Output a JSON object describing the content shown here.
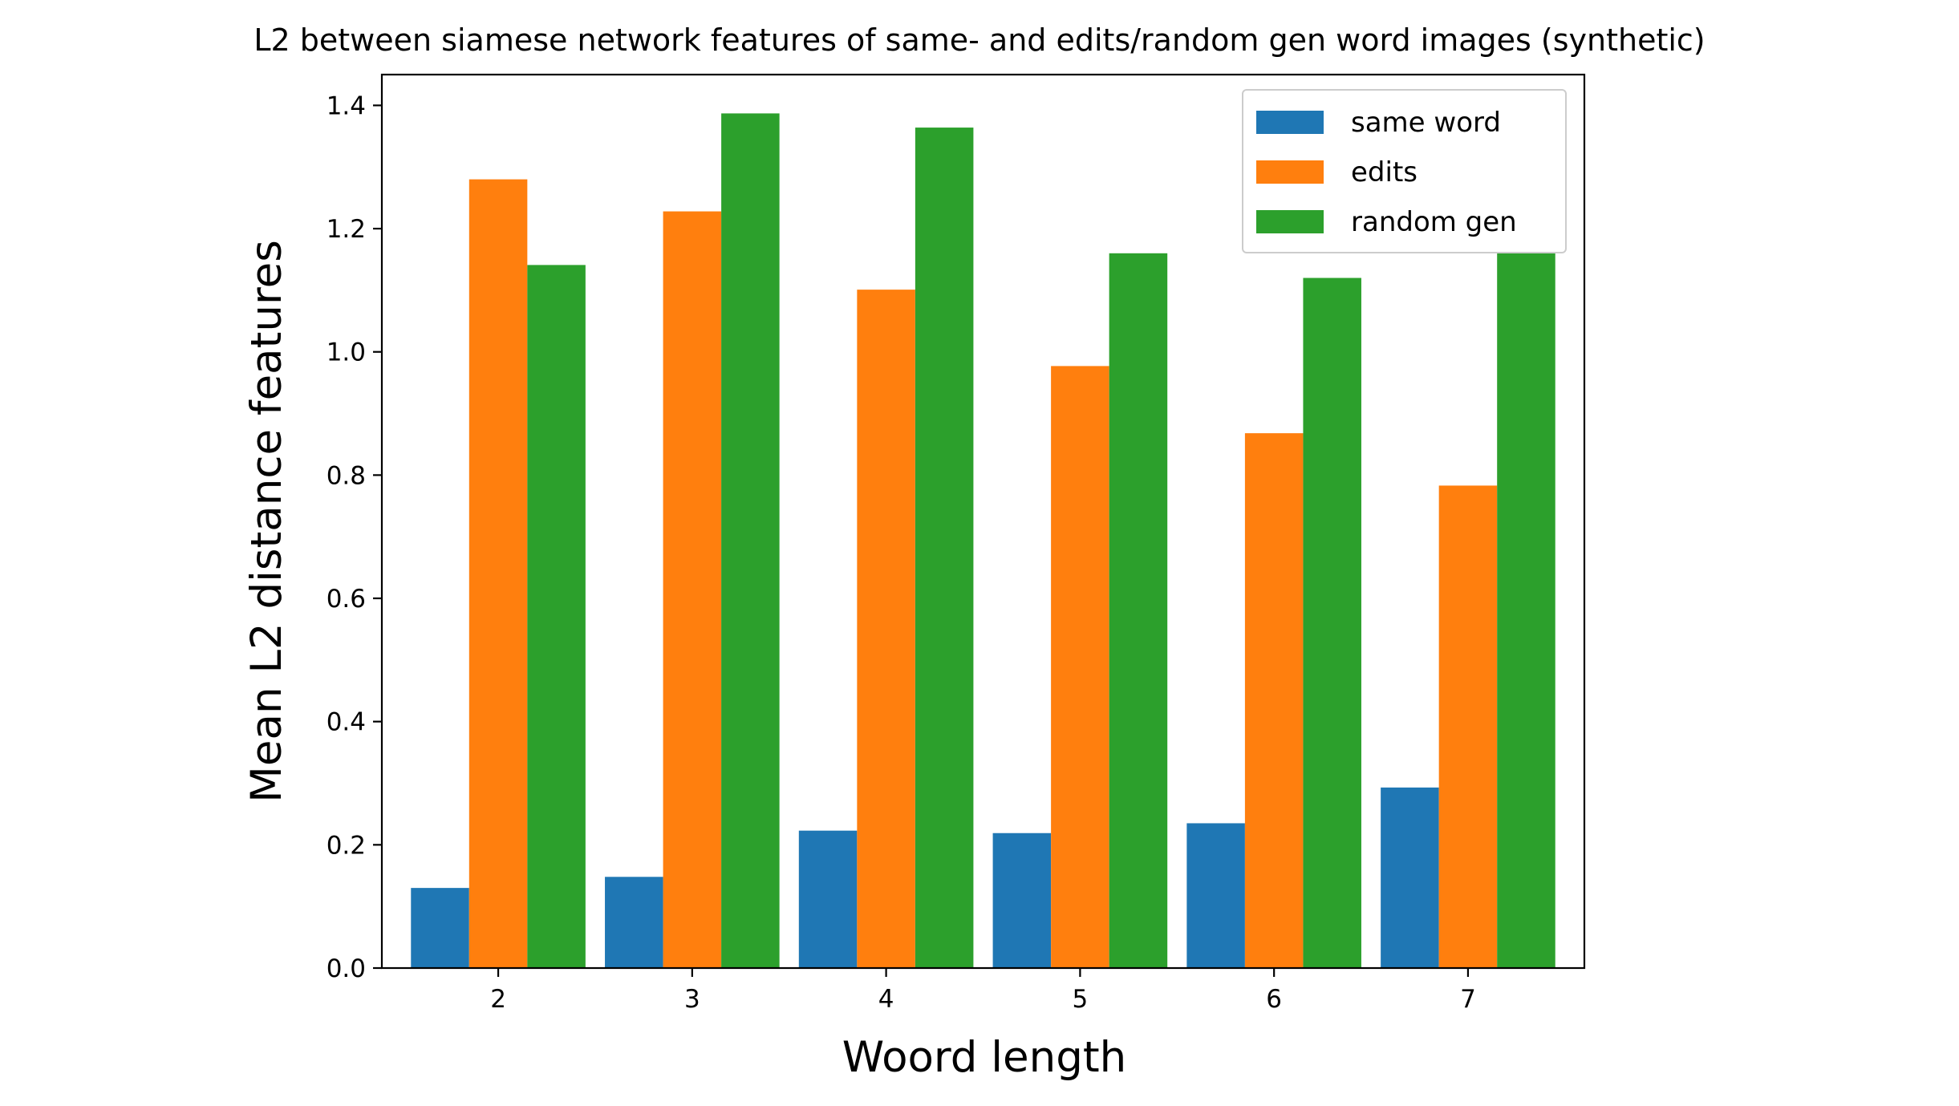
{
  "chart_data": {
    "type": "bar",
    "title": "L2 between siamese network features of same- and edits/random gen word images (synthetic)",
    "xlabel": "Woord length",
    "ylabel": "Mean L2 distance features",
    "categories": [
      "2",
      "3",
      "4",
      "5",
      "6",
      "7"
    ],
    "series": [
      {
        "name": "same word",
        "color": "#1f77b4",
        "values": [
          0.13,
          0.148,
          0.223,
          0.219,
          0.235,
          0.293
        ]
      },
      {
        "name": "edits",
        "color": "#ff7f0e",
        "values": [
          1.28,
          1.228,
          1.101,
          0.977,
          0.868,
          0.783
        ]
      },
      {
        "name": "random gen",
        "color": "#2ca02c",
        "values": [
          1.141,
          1.387,
          1.364,
          1.16,
          1.12,
          1.161
        ]
      }
    ],
    "ylim": [
      0,
      1.45
    ],
    "yticks": [
      "0.0",
      "0.2",
      "0.4",
      "0.6",
      "0.8",
      "1.0",
      "1.2",
      "1.4"
    ],
    "grid": false,
    "legend_position": "top-right"
  }
}
